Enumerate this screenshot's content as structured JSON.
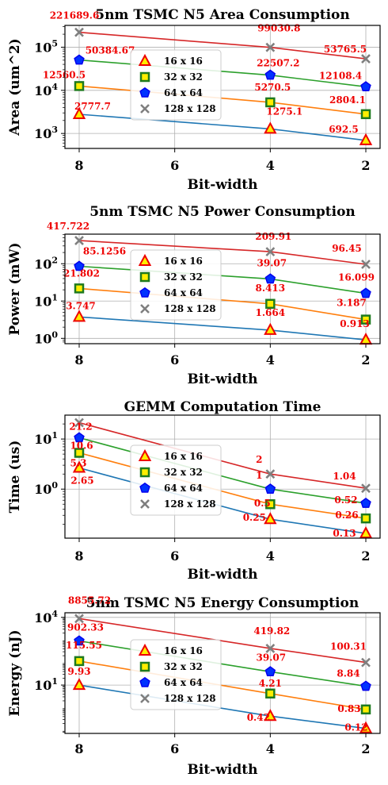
{
  "chart_data": [
    {
      "type": "line",
      "title": "5nm TSMC N5 Area Consumption",
      "xlabel": "Bit-width",
      "ylabel": "Area (um^2)",
      "yscale": "log",
      "x": [
        8,
        4,
        2
      ],
      "xticks": [
        "8",
        "6",
        "4",
        "2"
      ],
      "ylim": [
        450,
        320000
      ],
      "yticks": [
        {
          "v": 1000,
          "label": "10",
          "exp": "3"
        },
        {
          "v": 10000,
          "label": "10",
          "exp": "4"
        },
        {
          "v": 100000,
          "label": "10",
          "exp": "5"
        }
      ],
      "grid": true,
      "legend": "center-left",
      "series": [
        {
          "name": "16 x 16",
          "values": [
            2777.7,
            1275.1,
            692.5
          ],
          "labels": [
            "2777.7",
            "1275.1",
            "692.5"
          ]
        },
        {
          "name": "32 x 32",
          "values": [
            12560.5,
            5270.5,
            2804.1
          ],
          "labels": [
            "12560.5",
            "5270.5",
            "2804.1"
          ]
        },
        {
          "name": "64 x 64",
          "values": [
            50384.67,
            22507.2,
            12108.4
          ],
          "labels": [
            "50384.67",
            "22507.2",
            "12108.4"
          ]
        },
        {
          "name": "128 x 128",
          "values": [
            221689.6,
            99030.8,
            53765.5
          ],
          "labels": [
            "221689.6",
            "99030.8",
            "53765.5"
          ]
        }
      ]
    },
    {
      "type": "line",
      "title": "5nm TSMC N5 Power Consumption",
      "xlabel": "Bit-width",
      "ylabel": "Power (mW)",
      "yscale": "log",
      "x": [
        8,
        4,
        2
      ],
      "xticks": [
        "8",
        "6",
        "4",
        "2"
      ],
      "ylim": [
        0.72,
        620
      ],
      "yticks": [
        {
          "v": 1,
          "label": "10",
          "exp": "0"
        },
        {
          "v": 10,
          "label": "10",
          "exp": "1"
        },
        {
          "v": 100,
          "label": "10",
          "exp": "2"
        }
      ],
      "grid": true,
      "legend": "center-left",
      "series": [
        {
          "name": "16 x 16",
          "values": [
            3.747,
            1.664,
            0.913
          ],
          "labels": [
            "3.747",
            "1.664",
            "0.913"
          ]
        },
        {
          "name": "32 x 32",
          "values": [
            21.802,
            8.413,
            3.187
          ],
          "labels": [
            "21.802",
            "8.413",
            "3.187"
          ]
        },
        {
          "name": "64 x 64",
          "values": [
            85.1256,
            39.07,
            16.099
          ],
          "labels": [
            "85.1256",
            "39.07",
            "16.099"
          ]
        },
        {
          "name": "128 x 128",
          "values": [
            417.722,
            209.91,
            96.45
          ],
          "labels": [
            "417.722",
            "209.91",
            "96.45"
          ]
        }
      ]
    },
    {
      "type": "line",
      "title": "GEMM Computation Time",
      "xlabel": "Bit-width",
      "ylabel": "Time (us)",
      "yscale": "log",
      "x": [
        8,
        4,
        2
      ],
      "xticks": [
        "8",
        "6",
        "4",
        "2"
      ],
      "ylim": [
        0.105,
        30
      ],
      "yticks": [
        {
          "v": 1,
          "label": "10",
          "exp": "0"
        },
        {
          "v": 10,
          "label": "10",
          "exp": "1"
        }
      ],
      "grid": true,
      "legend": "center-left",
      "series": [
        {
          "name": "16 x 16",
          "values": [
            2.65,
            0.25,
            0.13
          ],
          "labels": [
            "2.65",
            "0.25",
            "0.13"
          ]
        },
        {
          "name": "32 x 32",
          "values": [
            5.3,
            0.5,
            0.26
          ],
          "labels": [
            "5.3",
            "0.5",
            "0.26"
          ]
        },
        {
          "name": "64 x 64",
          "values": [
            10.6,
            1,
            0.52
          ],
          "labels": [
            "10.6",
            "1",
            "0.52"
          ]
        },
        {
          "name": "128 x 128",
          "values": [
            21.2,
            2,
            1.04
          ],
          "labels": [
            "21.2",
            "2",
            "1.04"
          ]
        }
      ]
    },
    {
      "type": "line",
      "title": "5nm TSMC N5 Energy Consumption",
      "xlabel": "Bit-width",
      "ylabel": "Energy (nJ)",
      "yscale": "log",
      "x": [
        8,
        4,
        2
      ],
      "xticks": [
        "8",
        "6",
        "4",
        "2"
      ],
      "ylim": [
        0.072,
        16000
      ],
      "yticks": [
        {
          "v": 10,
          "label": "10",
          "exp": "1"
        },
        {
          "v": 10000,
          "label": "10",
          "exp": "4"
        }
      ],
      "grid": true,
      "legend": "center-left",
      "series": [
        {
          "name": "16 x 16",
          "values": [
            9.93,
            0.42,
            0.12
          ],
          "labels": [
            "9.93",
            "0.42",
            "0.12"
          ]
        },
        {
          "name": "32 x 32",
          "values": [
            115.55,
            4.21,
            0.83
          ],
          "labels": [
            "115.55",
            "4.21",
            "0.83"
          ]
        },
        {
          "name": "64 x 64",
          "values": [
            902.33,
            39.07,
            8.84
          ],
          "labels": [
            "902.33",
            "39.07",
            "8.84"
          ]
        },
        {
          "name": "128 x 128",
          "values": [
            8855.72,
            419.82,
            100.31
          ],
          "labels": [
            "8855.72",
            "419.82",
            "100.31"
          ]
        }
      ]
    }
  ],
  "styles": {
    "line_colors": [
      "#1f77b4",
      "#ff7f0e",
      "#2ca02c",
      "#d62728"
    ],
    "marker_edge": [
      "#ee0000",
      "#1e7a1e",
      "#0000ee",
      "#7f7f7f"
    ],
    "marker_fill": [
      "#ffee00",
      "#ffee00",
      "#0033ff",
      "none"
    ],
    "markers": [
      "triangle-icon",
      "square-icon",
      "pentagon-icon",
      "cross-icon"
    ],
    "label_color": "#ee0000"
  }
}
